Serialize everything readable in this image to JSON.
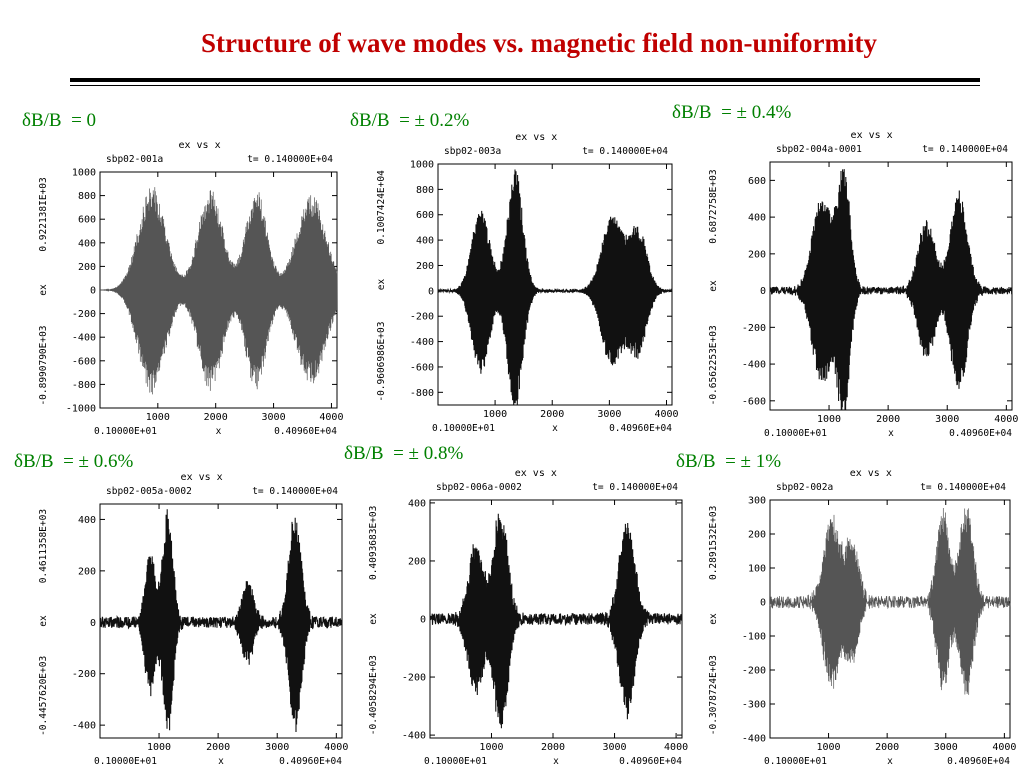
{
  "title": "Structure of wave modes vs. magnetic field non-uniformity",
  "colors": {
    "title": "#c00000",
    "label": "#008000",
    "trace": "#000000"
  },
  "chart_data": [
    {
      "type": "line",
      "label": "δB/B  = 0",
      "header": {
        "left": "sbp02-001a",
        "right": "t= 0.140000E+04",
        "top": "ex      vs      x"
      },
      "ylabel": "ex",
      "xlabel": "x",
      "ymax_label": "0.922138IE+03",
      "ymin_label": "-0.8990790E+03",
      "xmin_label": "0.10000E+01",
      "xmax_label": "0.40960E+04",
      "xlim": [
        1,
        4096
      ],
      "ylim": [
        -1000,
        1000
      ],
      "yticks": [
        -1000,
        -800,
        -600,
        -400,
        -200,
        0,
        200,
        400,
        600,
        800,
        1000
      ],
      "xticks": [
        1000,
        2000,
        3000,
        4000
      ],
      "style": "thin",
      "noise": 0,
      "packets": [
        {
          "center": 900,
          "width": 330,
          "amp": 890
        },
        {
          "center": 1910,
          "width": 300,
          "amp": 860
        },
        {
          "center": 2700,
          "width": 260,
          "amp": 860
        },
        {
          "center": 3650,
          "width": 360,
          "amp": 820
        }
      ]
    },
    {
      "type": "line",
      "label": "δB/B  = ± 0.2%",
      "header": {
        "left": "sbp02-003a",
        "right": "t= 0.140000E+04",
        "top": "ex      vs      x"
      },
      "ylabel": "ex",
      "xlabel": "x",
      "ymax_label": "0.1007424E+04",
      "ymin_label": "-0.9606986E+03",
      "xmin_label": "0.10000E+01",
      "xmax_label": "0.40960E+04",
      "xlim": [
        1,
        4096
      ],
      "ylim": [
        -900,
        1000
      ],
      "yticks": [
        -800,
        -600,
        -400,
        -200,
        0,
        200,
        400,
        600,
        800,
        1000
      ],
      "xticks": [
        1000,
        2000,
        3000,
        4000
      ],
      "style": "thick",
      "noise": 10,
      "packets": [
        {
          "center": 750,
          "width": 220,
          "amp": 650
        },
        {
          "center": 1350,
          "width": 190,
          "amp": 970
        },
        {
          "center": 3050,
          "width": 260,
          "amp": 600
        },
        {
          "center": 3500,
          "width": 220,
          "amp": 500
        }
      ]
    },
    {
      "type": "line",
      "label": "δB/B  = ± 0.4%",
      "header": {
        "left": "sbp02-004a-0001",
        "right": "t= 0.140000E+04",
        "top": "ex       vs       x"
      },
      "ylabel": "ex",
      "xlabel": "x",
      "ymax_label": "0.6872758E+03",
      "ymin_label": "-0.6562253E+03",
      "xmin_label": "0.10000E+01",
      "xmax_label": "0.40960E+04",
      "xlim": [
        1,
        4096
      ],
      "ylim": [
        -650,
        700
      ],
      "yticks": [
        -600,
        -400,
        -200,
        0,
        200,
        400,
        600
      ],
      "xticks": [
        1000,
        2000,
        3000,
        4000
      ],
      "style": "thick",
      "noise": 20,
      "packets": [
        {
          "center": 880,
          "width": 230,
          "amp": 520
        },
        {
          "center": 1250,
          "width": 150,
          "amp": 680
        },
        {
          "center": 2650,
          "width": 200,
          "amp": 380
        },
        {
          "center": 3200,
          "width": 200,
          "amp": 550
        }
      ]
    },
    {
      "type": "line",
      "label": "δB/B  = ± 0.6%",
      "header": {
        "left": "sbp02-005a-0002",
        "right": "t= 0.140000E+04",
        "top": "ex       vs       x"
      },
      "ylabel": "ex",
      "xlabel": "x",
      "ymax_label": "0.4611358E+03",
      "ymin_label": "-0.4457620E+03",
      "xmin_label": "0.10000E+01",
      "xmax_label": "0.40960E+04",
      "xlim": [
        1,
        4096
      ],
      "ylim": [
        -450,
        460
      ],
      "yticks": [
        -400,
        -200,
        0,
        200,
        400
      ],
      "xticks": [
        1000,
        2000,
        3000,
        4000
      ],
      "style": "thick",
      "noise": 22,
      "packets": [
        {
          "center": 850,
          "width": 120,
          "amp": 280
        },
        {
          "center": 1150,
          "width": 120,
          "amp": 440
        },
        {
          "center": 2500,
          "width": 140,
          "amp": 160
        },
        {
          "center": 3300,
          "width": 150,
          "amp": 420
        }
      ]
    },
    {
      "type": "line",
      "label": "δB/B  = ± 0.8%",
      "header": {
        "left": "sbp02-006a-0002",
        "right": "t= 0.140000E+04",
        "top": "ex       vs       x"
      },
      "ylabel": "ex",
      "xlabel": "x",
      "ymax_label": "0.4093683E+03",
      "ymin_label": "-0.4058294E+03",
      "xmin_label": "0.10000E+01",
      "xmax_label": "0.40960E+04",
      "xlim": [
        1,
        4096
      ],
      "ylim": [
        -410,
        410
      ],
      "yticks": [
        -400,
        -200,
        0,
        200,
        400
      ],
      "xticks": [
        1000,
        2000,
        3000,
        4000
      ],
      "style": "thick",
      "noise": 20,
      "packets": [
        {
          "center": 750,
          "width": 170,
          "amp": 270
        },
        {
          "center": 1150,
          "width": 160,
          "amp": 400
        },
        {
          "center": 3200,
          "width": 180,
          "amp": 330
        }
      ]
    },
    {
      "type": "line",
      "label": "δB/B  = ± 1%",
      "header": {
        "left": "sbp02-002a",
        "right": "t= 0.140000E+04",
        "top": "ex      vs      x"
      },
      "ylabel": "ex",
      "xlabel": "x",
      "ymax_label": "0.2891532E+03",
      "ymin_label": "-0.3078724E+03",
      "xmin_label": "0.10000E+01",
      "xmax_label": "0.40960E+04",
      "xlim": [
        1,
        4096
      ],
      "ylim": [
        -400,
        300
      ],
      "yticks": [
        -400,
        -300,
        -200,
        -100,
        0,
        100,
        200,
        300
      ],
      "xticks": [
        1000,
        2000,
        3000,
        4000
      ],
      "style": "thin",
      "noise": 18,
      "packets": [
        {
          "center": 1050,
          "width": 200,
          "amp": 250
        },
        {
          "center": 1400,
          "width": 160,
          "amp": 180
        },
        {
          "center": 2950,
          "width": 150,
          "amp": 280
        },
        {
          "center": 3350,
          "width": 160,
          "amp": 290
        }
      ]
    }
  ]
}
